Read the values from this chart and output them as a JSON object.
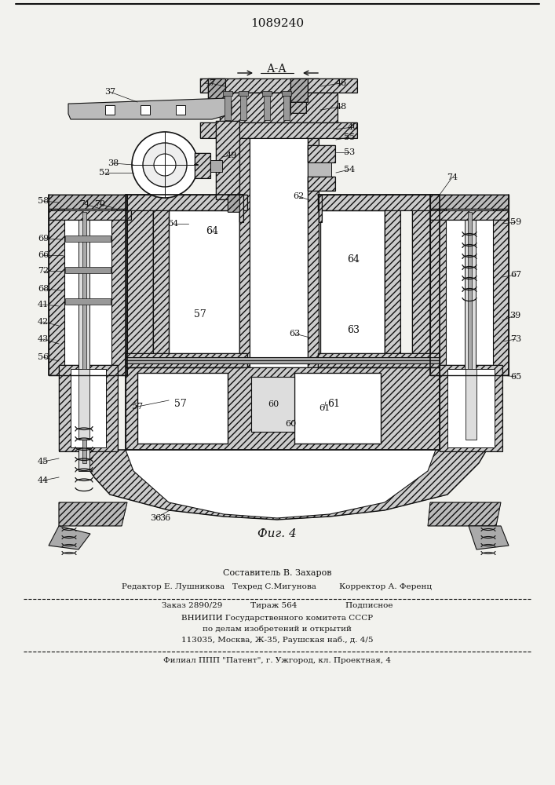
{
  "patent_number": "1089240",
  "figure_label": "Фиг. 4",
  "bg_color": "#f2f2ee",
  "line_color": "#111111",
  "footer_lines": [
    "Составитель В. Захаров",
    "Редактор Е. Лушникова   Техред С.Мигунова         Корректор А. Ференц",
    "Заказ 2890/29           Тираж 564                   Подписное",
    "ВНИИПИ Государственного комитета СССР",
    "по делам изобретений и открытий",
    "113035, Москва, Ж-35, Раушская наб., д. 4/5",
    "Филиал ППП \"Патент\", г. Ужгород, кл. Проектная, 4"
  ]
}
